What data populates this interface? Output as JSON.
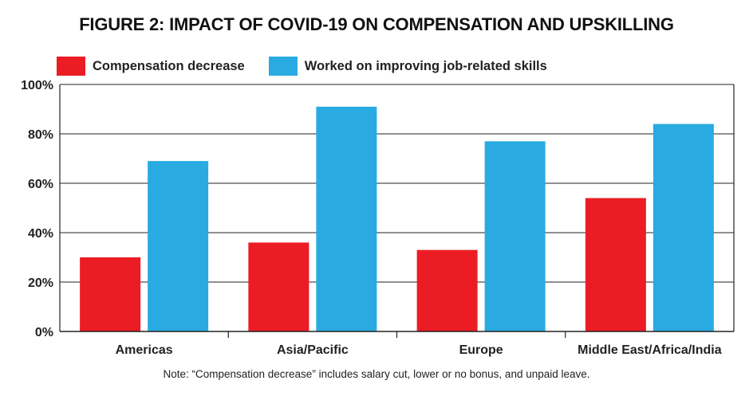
{
  "chart_data": {
    "type": "bar",
    "title": "FIGURE 2: IMPACT OF COVID-19 ON COMPENSATION AND UPSKILLING",
    "categories": [
      "Americas",
      "Asia/Pacific",
      "Europe",
      "Middle East/Africa/India"
    ],
    "series": [
      {
        "name": "Compensation decrease",
        "color": "#ec1c24",
        "values": [
          30,
          36,
          33,
          54
        ]
      },
      {
        "name": "Worked on improving job-related skills",
        "color": "#29abe2",
        "values": [
          69,
          91,
          77,
          84
        ]
      }
    ],
    "ylim": [
      0,
      100
    ],
    "yticks": [
      "0%",
      "20%",
      "40%",
      "60%",
      "80%",
      "100%"
    ],
    "grid": true,
    "legend_position": "top-left",
    "xlabel": "",
    "ylabel": "",
    "note": "Note: “Compensation decrease” includes salary cut, lower or no bonus, and unpaid leave."
  }
}
